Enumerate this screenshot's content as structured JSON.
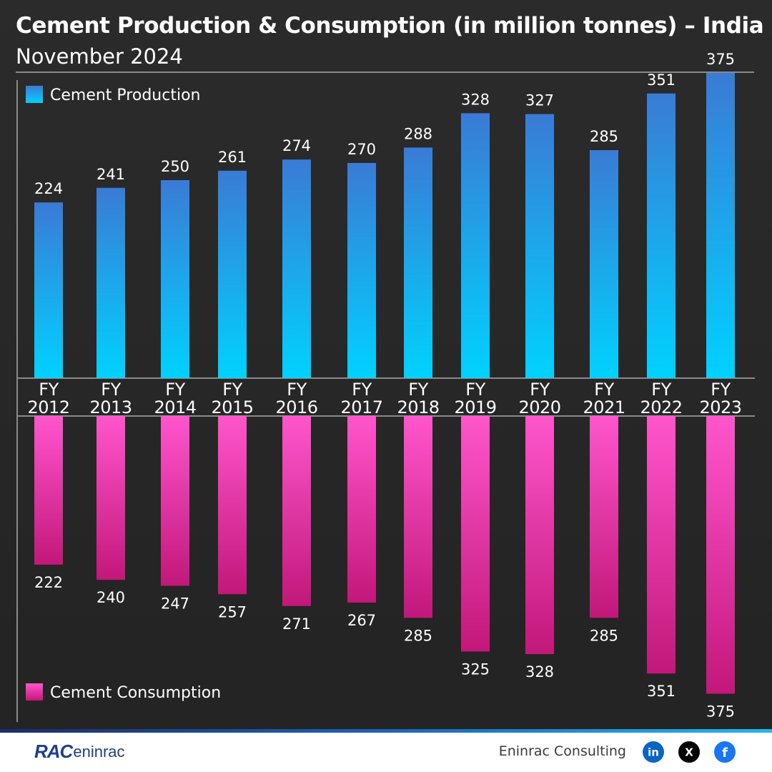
{
  "header": {
    "title": "Cement Production & Consumption (in million tonnes) – India",
    "subtitle": "November 2024"
  },
  "chart_data": {
    "type": "bar",
    "categories": [
      "FY 2012",
      "FY 2013",
      "FY 2014",
      "FY 2015",
      "FY 2016",
      "FY 2017",
      "FY 2018",
      "FY 2019",
      "FY 2020",
      "FY 2021",
      "FY 2022",
      "FY 2023"
    ],
    "series": [
      {
        "name": "Cement Production",
        "values": [
          224,
          241,
          250,
          261,
          274,
          270,
          288,
          328,
          327,
          285,
          351,
          375
        ],
        "direction": "up",
        "color_top": "#3a7bd5",
        "color_bottom": "#00d2ff"
      },
      {
        "name": "Cement Consumption",
        "values": [
          222,
          240,
          247,
          257,
          271,
          267,
          285,
          325,
          328,
          285,
          351,
          375
        ],
        "direction": "down",
        "color_top": "#ff55cc",
        "color_bottom": "#c2187a"
      }
    ],
    "legend": [
      "top-left",
      "bottom-left"
    ]
  },
  "footer": {
    "logo_mark": "RAC",
    "logo_word": "eninrac",
    "company": "Eninrac Consulting",
    "social": [
      {
        "icon": "linkedin-icon",
        "label": "in",
        "color": "#0a66c2"
      },
      {
        "icon": "x-icon",
        "label": "X",
        "color": "#000000"
      },
      {
        "icon": "facebook-icon",
        "label": "f",
        "color": "#1877f2"
      }
    ]
  }
}
